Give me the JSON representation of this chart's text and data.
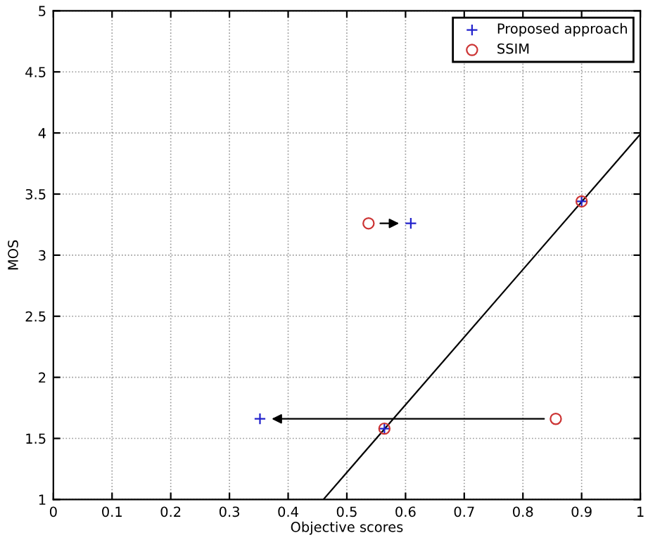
{
  "chart_data": {
    "type": "scatter",
    "xlabel": "Objective scores",
    "ylabel": "MOS",
    "xlim": [
      0,
      1
    ],
    "ylim": [
      1,
      5
    ],
    "xticks": [
      0,
      0.1,
      0.2,
      0.3,
      0.4,
      0.5,
      0.6,
      0.7,
      0.8,
      0.9,
      1
    ],
    "yticks": [
      1,
      1.5,
      2,
      2.5,
      3,
      3.5,
      4,
      4.5,
      5
    ],
    "grid": true,
    "legend": "top right",
    "series": [
      {
        "name": "Proposed approach",
        "color": "#2222cc",
        "marker": "cross",
        "x": [
          0.609,
          0.352,
          0.564,
          0.9
        ],
        "values": [
          3.26,
          1.66,
          1.58,
          3.44
        ]
      },
      {
        "name": "SSIM",
        "color": "#cc3333",
        "marker": "circle",
        "x": [
          0.537,
          0.856,
          0.564,
          0.9
        ],
        "values": [
          3.26,
          1.66,
          1.58,
          3.44
        ]
      },
      {
        "type": "line",
        "color": "#000000",
        "marker": "none",
        "x": [
          0.46,
          1
        ],
        "values": [
          1,
          3.99
        ]
      }
    ]
  }
}
